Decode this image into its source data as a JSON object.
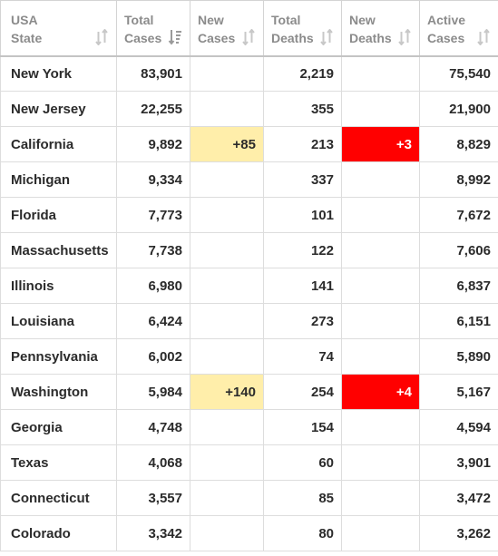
{
  "colors": {
    "new_cases_highlight": "#ffeeaa",
    "new_deaths_highlight": "#ff0000",
    "header_text": "#8b8b8b",
    "sort_icon_inactive": "#c8c8c8",
    "sort_icon_active": "#9a9a9a"
  },
  "headers": [
    {
      "line1": "USA",
      "line2": "State",
      "sort_icon": "sort-inactive-icon"
    },
    {
      "line1": "Total",
      "line2": "Cases",
      "sort_icon": "sort-descending-icon"
    },
    {
      "line1": "New",
      "line2": "Cases",
      "sort_icon": "sort-inactive-icon"
    },
    {
      "line1": "Total",
      "line2": "Deaths",
      "sort_icon": "sort-inactive-icon"
    },
    {
      "line1": "New",
      "line2": "Deaths",
      "sort_icon": "sort-inactive-icon"
    },
    {
      "line1": "Active",
      "line2": "Cases",
      "sort_icon": "sort-inactive-icon"
    }
  ],
  "rows": [
    {
      "state": "New York",
      "total_cases": "83,901",
      "new_cases": "",
      "total_deaths": "2,219",
      "new_deaths": "",
      "active_cases": "75,540"
    },
    {
      "state": "New Jersey",
      "total_cases": "22,255",
      "new_cases": "",
      "total_deaths": "355",
      "new_deaths": "",
      "active_cases": "21,900"
    },
    {
      "state": "California",
      "total_cases": "9,892",
      "new_cases": "+85",
      "total_deaths": "213",
      "new_deaths": "+3",
      "active_cases": "8,829"
    },
    {
      "state": "Michigan",
      "total_cases": "9,334",
      "new_cases": "",
      "total_deaths": "337",
      "new_deaths": "",
      "active_cases": "8,992"
    },
    {
      "state": "Florida",
      "total_cases": "7,773",
      "new_cases": "",
      "total_deaths": "101",
      "new_deaths": "",
      "active_cases": "7,672"
    },
    {
      "state": "Massachusetts",
      "total_cases": "7,738",
      "new_cases": "",
      "total_deaths": "122",
      "new_deaths": "",
      "active_cases": "7,606"
    },
    {
      "state": "Illinois",
      "total_cases": "6,980",
      "new_cases": "",
      "total_deaths": "141",
      "new_deaths": "",
      "active_cases": "6,837"
    },
    {
      "state": "Louisiana",
      "total_cases": "6,424",
      "new_cases": "",
      "total_deaths": "273",
      "new_deaths": "",
      "active_cases": "6,151"
    },
    {
      "state": "Pennsylvania",
      "total_cases": "6,002",
      "new_cases": "",
      "total_deaths": "74",
      "new_deaths": "",
      "active_cases": "5,890"
    },
    {
      "state": "Washington",
      "total_cases": "5,984",
      "new_cases": "+140",
      "total_deaths": "254",
      "new_deaths": "+4",
      "active_cases": "5,167"
    },
    {
      "state": "Georgia",
      "total_cases": "4,748",
      "new_cases": "",
      "total_deaths": "154",
      "new_deaths": "",
      "active_cases": "4,594"
    },
    {
      "state": "Texas",
      "total_cases": "4,068",
      "new_cases": "",
      "total_deaths": "60",
      "new_deaths": "",
      "active_cases": "3,901"
    },
    {
      "state": "Connecticut",
      "total_cases": "3,557",
      "new_cases": "",
      "total_deaths": "85",
      "new_deaths": "",
      "active_cases": "3,472"
    },
    {
      "state": "Colorado",
      "total_cases": "3,342",
      "new_cases": "",
      "total_deaths": "80",
      "new_deaths": "",
      "active_cases": "3,262"
    }
  ]
}
